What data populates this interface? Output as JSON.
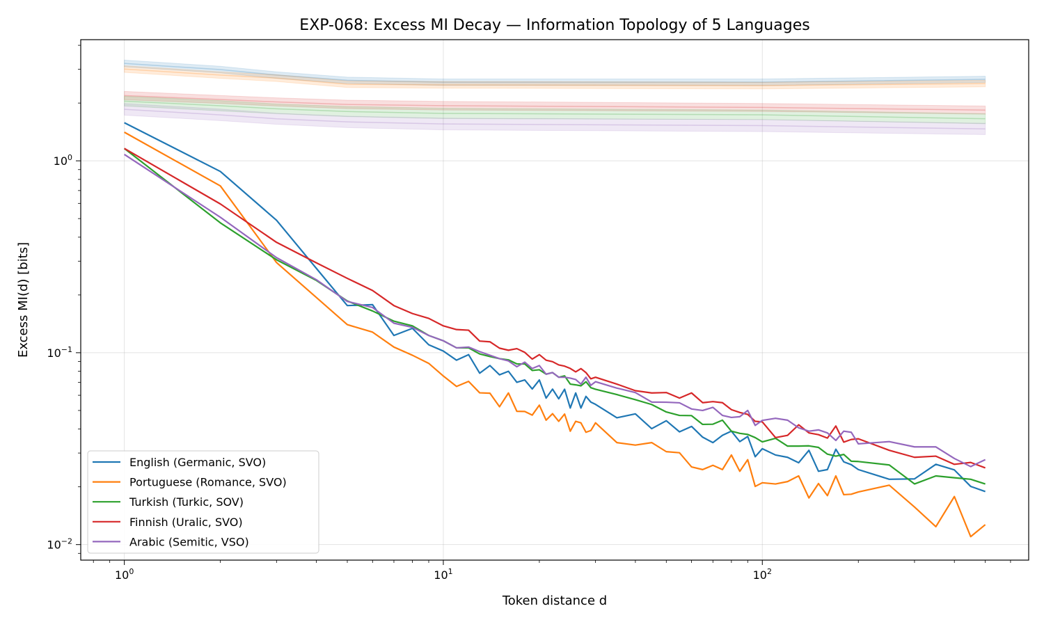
{
  "chart_data": {
    "type": "line",
    "title": "EXP-068: Excess MI Decay — Information Topology of 5 Languages",
    "xlabel": "Token distance d",
    "ylabel": "Excess MI(d) [bits]",
    "xscale": "log",
    "yscale": "log",
    "xlim": [
      0.73,
      684
    ],
    "ylim": [
      0.0083,
      4.28
    ],
    "grid": true,
    "legend_position": "lower-left",
    "x_ticks": [
      {
        "base": "10",
        "exp": "0",
        "value": 1
      },
      {
        "base": "10",
        "exp": "1",
        "value": 10
      },
      {
        "base": "10",
        "exp": "2",
        "value": 100
      }
    ],
    "y_ticks": [
      {
        "base": "10",
        "exp": "−2",
        "value": 0.01
      },
      {
        "base": "10",
        "exp": "−1",
        "value": 0.1
      },
      {
        "base": "10",
        "exp": "0",
        "value": 1
      }
    ],
    "x": [
      1,
      2,
      3,
      4,
      5,
      6,
      7,
      8,
      9,
      10,
      11,
      12,
      13,
      14,
      15,
      16,
      17,
      18,
      19,
      20,
      21,
      22,
      23,
      24,
      25,
      26,
      27,
      28,
      29,
      30,
      35,
      40,
      45,
      50,
      55,
      60,
      65,
      70,
      75,
      80,
      85,
      90,
      95,
      100,
      110,
      120,
      130,
      140,
      150,
      160,
      170,
      180,
      190,
      200,
      250,
      300,
      350,
      400,
      450,
      500
    ],
    "series": [
      {
        "name": "English (Germanic, SVO)",
        "color": "#1f77b4",
        "values": [
          1.58,
          0.88,
          0.49,
          0.275,
          0.176,
          0.178,
          0.123,
          0.134,
          0.11,
          0.102,
          0.0914,
          0.0977,
          0.0782,
          0.0857,
          0.0767,
          0.08,
          0.0701,
          0.0721,
          0.0647,
          0.0721,
          0.058,
          0.0646,
          0.0575,
          0.0645,
          0.0515,
          0.0617,
          0.0515,
          0.0592,
          0.0553,
          0.0538,
          0.0458,
          0.048,
          0.0402,
          0.0442,
          0.0387,
          0.0413,
          0.0363,
          0.034,
          0.0371,
          0.039,
          0.0344,
          0.0366,
          0.0287,
          0.0316,
          0.0293,
          0.0285,
          0.0267,
          0.031,
          0.0241,
          0.0246,
          0.0314,
          0.027,
          0.0261,
          0.0246,
          0.0219,
          0.022,
          0.0262,
          0.0245,
          0.0201,
          0.0189
        ]
      },
      {
        "name": "Portuguese (Romance, SVO)",
        "color": "#ff7f0e",
        "values": [
          1.41,
          0.74,
          0.295,
          0.194,
          0.14,
          0.128,
          0.107,
          0.097,
          0.088,
          0.0756,
          0.0667,
          0.0709,
          0.0618,
          0.0615,
          0.0523,
          0.0617,
          0.0495,
          0.0494,
          0.0473,
          0.0533,
          0.0445,
          0.0481,
          0.0439,
          0.0479,
          0.039,
          0.0439,
          0.0431,
          0.0385,
          0.0393,
          0.0431,
          0.034,
          0.033,
          0.034,
          0.0305,
          0.0301,
          0.0254,
          0.0246,
          0.0259,
          0.0246,
          0.0293,
          0.0241,
          0.0277,
          0.0201,
          0.021,
          0.0207,
          0.0213,
          0.0228,
          0.0175,
          0.0208,
          0.018,
          0.0228,
          0.0182,
          0.0183,
          0.0188,
          0.0204,
          0.0157,
          0.0124,
          0.0178,
          0.011,
          0.0127
        ]
      },
      {
        "name": "Turkish (Turkic, SOV)",
        "color": "#2ca02c",
        "values": [
          1.16,
          0.475,
          0.305,
          0.238,
          0.186,
          0.165,
          0.146,
          0.138,
          0.123,
          0.1154,
          0.106,
          0.106,
          0.0985,
          0.0955,
          0.0931,
          0.0918,
          0.0874,
          0.0874,
          0.0808,
          0.0815,
          0.0773,
          0.0788,
          0.0745,
          0.0757,
          0.0686,
          0.068,
          0.0672,
          0.0706,
          0.0657,
          0.0645,
          0.0605,
          0.0569,
          0.0537,
          0.0491,
          0.0471,
          0.047,
          0.0423,
          0.0424,
          0.0445,
          0.039,
          0.038,
          0.0375,
          0.0361,
          0.0343,
          0.0358,
          0.0326,
          0.0326,
          0.0327,
          0.0321,
          0.0296,
          0.0289,
          0.0295,
          0.0272,
          0.0271,
          0.026,
          0.0207,
          0.0228,
          0.0223,
          0.0219,
          0.0207
        ]
      },
      {
        "name": "Finnish (Uralic, SVO)",
        "color": "#d62728",
        "values": [
          1.16,
          0.596,
          0.376,
          0.294,
          0.244,
          0.211,
          0.176,
          0.16,
          0.151,
          0.138,
          0.132,
          0.131,
          0.115,
          0.114,
          0.1056,
          0.103,
          0.105,
          0.1004,
          0.0926,
          0.0977,
          0.0914,
          0.0898,
          0.0864,
          0.0851,
          0.0828,
          0.0795,
          0.0826,
          0.0788,
          0.0731,
          0.0745,
          0.0686,
          0.0634,
          0.0617,
          0.062,
          0.058,
          0.0617,
          0.0549,
          0.0556,
          0.0549,
          0.0505,
          0.0488,
          0.0477,
          0.0439,
          0.0436,
          0.0361,
          0.0371,
          0.0421,
          0.0382,
          0.0374,
          0.0359,
          0.0415,
          0.0342,
          0.0353,
          0.0356,
          0.031,
          0.0285,
          0.0289,
          0.0262,
          0.0268,
          0.0251
        ]
      },
      {
        "name": "Arabic (Semitic, VSO)",
        "color": "#9467bd",
        "values": [
          1.08,
          0.508,
          0.313,
          0.24,
          0.185,
          0.172,
          0.1425,
          0.1356,
          0.123,
          0.1154,
          0.106,
          0.107,
          0.1013,
          0.097,
          0.0931,
          0.0906,
          0.0845,
          0.0893,
          0.0827,
          0.0857,
          0.0773,
          0.0788,
          0.0745,
          0.0745,
          0.0737,
          0.0725,
          0.0686,
          0.0745,
          0.0676,
          0.0706,
          0.0654,
          0.062,
          0.0553,
          0.0552,
          0.0548,
          0.0509,
          0.05,
          0.0519,
          0.0471,
          0.046,
          0.0464,
          0.05,
          0.0418,
          0.0444,
          0.0455,
          0.0445,
          0.0406,
          0.039,
          0.0396,
          0.0382,
          0.0349,
          0.039,
          0.0385,
          0.0335,
          0.0344,
          0.0323,
          0.0323,
          0.0281,
          0.0255,
          0.0277
        ]
      }
    ],
    "baseline_bands": {
      "x": [
        1,
        2,
        3,
        5,
        10,
        100,
        500
      ],
      "bands": [
        {
          "color": "#1f77b4",
          "lower": [
            3.09,
            2.87,
            2.69,
            2.53,
            2.47,
            2.47,
            2.56
          ],
          "upper": [
            3.35,
            3.11,
            2.91,
            2.73,
            2.67,
            2.67,
            2.76
          ]
        },
        {
          "color": "#ff7f0e",
          "lower": [
            2.89,
            2.69,
            2.59,
            2.41,
            2.39,
            2.37,
            2.43
          ],
          "upper": [
            3.13,
            2.91,
            2.81,
            2.61,
            2.59,
            2.57,
            2.63
          ]
        },
        {
          "color": "#d62728",
          "lower": [
            2.08,
            1.99,
            1.93,
            1.87,
            1.84,
            1.81,
            1.75
          ],
          "upper": [
            2.3,
            2.19,
            2.13,
            2.07,
            2.04,
            1.99,
            1.93
          ]
        },
        {
          "color": "#2ca02c",
          "lower": [
            1.93,
            1.82,
            1.76,
            1.7,
            1.66,
            1.64,
            1.56
          ],
          "upper": [
            2.17,
            2.06,
            1.98,
            1.92,
            1.88,
            1.84,
            1.76
          ]
        },
        {
          "color": "#9467bd",
          "lower": [
            1.73,
            1.62,
            1.55,
            1.49,
            1.45,
            1.42,
            1.37
          ],
          "upper": [
            1.99,
            1.86,
            1.77,
            1.71,
            1.67,
            1.64,
            1.57
          ]
        }
      ]
    }
  }
}
